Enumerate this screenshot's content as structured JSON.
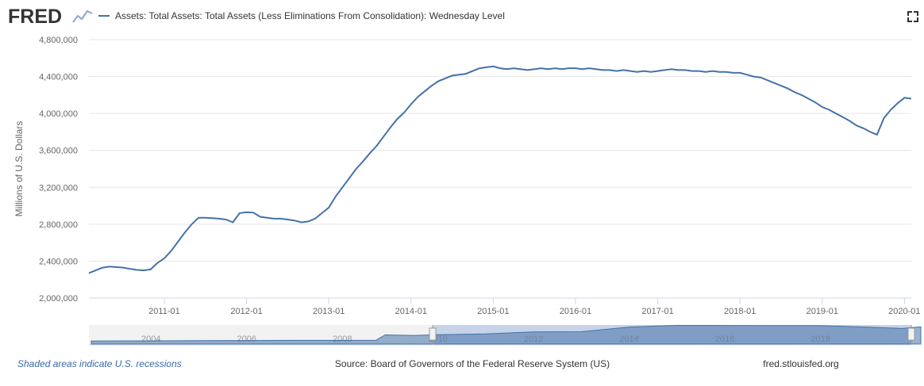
{
  "logo": "FRED",
  "footer": {
    "recessions": "Shaded areas indicate U.S. recessions",
    "source": "Source: Board of Governors of the Federal Reserve System (US)",
    "site": "fred.stlouisfed.org"
  },
  "chart_data": {
    "type": "line",
    "y_label": "Millions of U.S. Dollars",
    "x": [
      "2010-02",
      "2010-03",
      "2010-04",
      "2010-05",
      "2010-06",
      "2010-07",
      "2010-08",
      "2010-09",
      "2010-10",
      "2010-11",
      "2010-12",
      "2011-01",
      "2011-02",
      "2011-03",
      "2011-04",
      "2011-05",
      "2011-06",
      "2011-07",
      "2011-08",
      "2011-09",
      "2011-10",
      "2011-11",
      "2011-12",
      "2012-01",
      "2012-02",
      "2012-03",
      "2012-04",
      "2012-05",
      "2012-06",
      "2012-07",
      "2012-08",
      "2012-09",
      "2012-10",
      "2012-11",
      "2012-12",
      "2013-01",
      "2013-02",
      "2013-03",
      "2013-04",
      "2013-05",
      "2013-06",
      "2013-07",
      "2013-08",
      "2013-09",
      "2013-10",
      "2013-11",
      "2013-12",
      "2014-01",
      "2014-02",
      "2014-03",
      "2014-04",
      "2014-05",
      "2014-06",
      "2014-07",
      "2014-08",
      "2014-09",
      "2014-10",
      "2014-11",
      "2014-12",
      "2015-01",
      "2015-02",
      "2015-03",
      "2015-04",
      "2015-05",
      "2015-06",
      "2015-07",
      "2015-08",
      "2015-09",
      "2015-10",
      "2015-11",
      "2015-12",
      "2016-01",
      "2016-02",
      "2016-03",
      "2016-04",
      "2016-05",
      "2016-06",
      "2016-07",
      "2016-08",
      "2016-09",
      "2016-10",
      "2016-11",
      "2016-12",
      "2017-01",
      "2017-02",
      "2017-03",
      "2017-04",
      "2017-05",
      "2017-06",
      "2017-07",
      "2017-08",
      "2017-09",
      "2017-10",
      "2017-11",
      "2017-12",
      "2018-01",
      "2018-02",
      "2018-03",
      "2018-04",
      "2018-05",
      "2018-06",
      "2018-07",
      "2018-08",
      "2018-09",
      "2018-10",
      "2018-11",
      "2018-12",
      "2019-01",
      "2019-02",
      "2019-03",
      "2019-04",
      "2019-05",
      "2019-06",
      "2019-07",
      "2019-08",
      "2019-09",
      "2019-10",
      "2019-11",
      "2019-12",
      "2020-01",
      "2020-02"
    ],
    "series": [
      {
        "name": "Assets: Total Assets: Total Assets (Less Eliminations From Consolidation): Wednesday Level",
        "color": "#4572a7",
        "values": [
          2270000,
          2300000,
          2330000,
          2340000,
          2335000,
          2330000,
          2315000,
          2305000,
          2300000,
          2310000,
          2380000,
          2430000,
          2510000,
          2610000,
          2710000,
          2800000,
          2870000,
          2870000,
          2865000,
          2860000,
          2850000,
          2820000,
          2920000,
          2930000,
          2925000,
          2880000,
          2870000,
          2860000,
          2860000,
          2850000,
          2840000,
          2820000,
          2830000,
          2860000,
          2920000,
          2980000,
          3100000,
          3200000,
          3300000,
          3400000,
          3480000,
          3570000,
          3650000,
          3750000,
          3850000,
          3940000,
          4010000,
          4100000,
          4180000,
          4240000,
          4300000,
          4350000,
          4380000,
          4410000,
          4420000,
          4430000,
          4460000,
          4490000,
          4500000,
          4510000,
          4490000,
          4480000,
          4490000,
          4480000,
          4470000,
          4480000,
          4490000,
          4480000,
          4490000,
          4480000,
          4490000,
          4490000,
          4480000,
          4490000,
          4480000,
          4470000,
          4470000,
          4460000,
          4470000,
          4460000,
          4450000,
          4460000,
          4450000,
          4460000,
          4470000,
          4480000,
          4470000,
          4470000,
          4460000,
          4460000,
          4450000,
          4460000,
          4450000,
          4450000,
          4440000,
          4440000,
          4420000,
          4400000,
          4390000,
          4360000,
          4330000,
          4300000,
          4270000,
          4230000,
          4200000,
          4160000,
          4120000,
          4070000,
          4040000,
          4000000,
          3960000,
          3920000,
          3870000,
          3840000,
          3800000,
          3770000,
          3950000,
          4040000,
          4110000,
          4170000,
          4160000
        ]
      }
    ],
    "xlim": [
      "2010-02",
      "2020-02"
    ],
    "xticks": [
      "2011-01",
      "2012-01",
      "2013-01",
      "2014-01",
      "2015-01",
      "2016-01",
      "2017-01",
      "2018-01",
      "2019-01",
      "2020-01"
    ],
    "ylim": [
      2000000,
      4800000
    ],
    "yticks": [
      {
        "value": 2000000,
        "label": "2,000,000"
      },
      {
        "value": 2400000,
        "label": "2,400,000"
      },
      {
        "value": 2800000,
        "label": "2,800,000"
      },
      {
        "value": 3200000,
        "label": "3,200,000"
      },
      {
        "value": 3600000,
        "label": "3,600,000"
      },
      {
        "value": 4000000,
        "label": "4,000,000"
      },
      {
        "value": 4400000,
        "label": "4,400,000"
      },
      {
        "value": 4800000,
        "label": "4,800,000"
      }
    ],
    "grid": true,
    "navigator": {
      "x": [
        2002.75,
        2004,
        2005,
        2006,
        2007,
        2008,
        2008.7,
        2008.9,
        2009.5,
        2010,
        2011,
        2012,
        2013,
        2014,
        2015,
        2016,
        2017,
        2018,
        2019,
        2019.7,
        2020.1
      ],
      "values": [
        720000,
        760000,
        820000,
        850000,
        880000,
        890000,
        900000,
        2200000,
        2050000,
        2270000,
        2430000,
        2930000,
        2970000,
        4100000,
        4510000,
        4480000,
        4470000,
        4440000,
        4070000,
        3760000,
        4160000
      ],
      "xlim": [
        2002.7,
        2019.9
      ],
      "ylim": [
        0,
        4600000
      ],
      "xticks": [
        2004,
        2006,
        2008,
        2010,
        2012,
        2014,
        2016,
        2018
      ]
    }
  }
}
